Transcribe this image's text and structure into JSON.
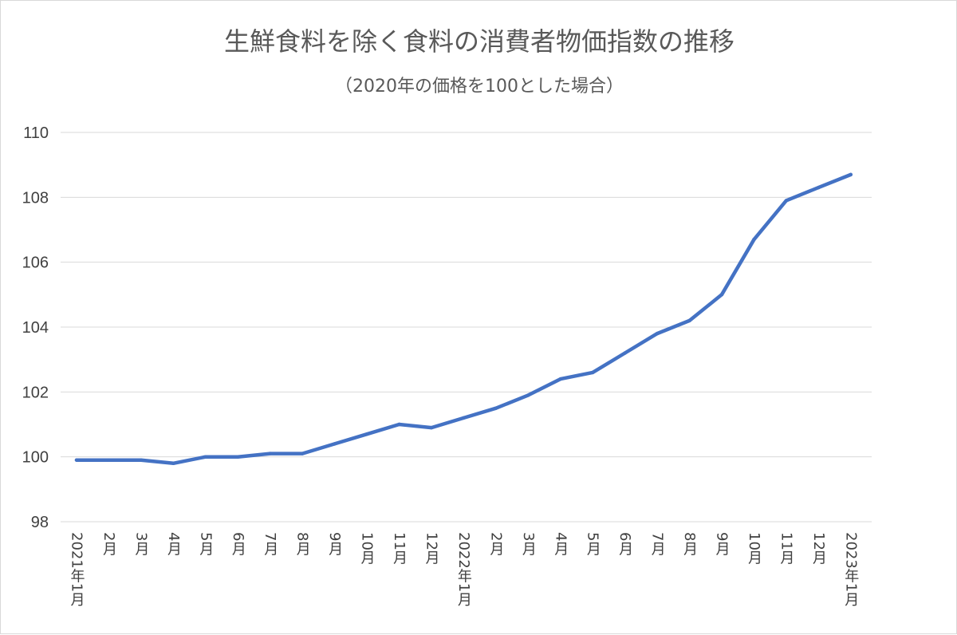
{
  "chart_data": {
    "type": "line",
    "title": "生鮮食料を除く食料の消費者物価指数の推移",
    "subtitle": "（2020年の価格を100とした場合）",
    "categories": [
      "2021年1月",
      "2月",
      "3月",
      "4月",
      "5月",
      "6月",
      "7月",
      "8月",
      "9月",
      "10月",
      "11月",
      "12月",
      "2022年1月",
      "2月",
      "3月",
      "4月",
      "5月",
      "6月",
      "7月",
      "8月",
      "9月",
      "10月",
      "11月",
      "12月",
      "2023年1月"
    ],
    "series": [
      {
        "values": [
          99.9,
          99.9,
          99.9,
          99.8,
          100.0,
          100.0,
          100.1,
          100.1,
          100.4,
          100.7,
          101.0,
          100.9,
          101.2,
          101.5,
          101.9,
          102.4,
          102.6,
          103.2,
          103.8,
          104.2,
          105.0,
          106.7,
          107.9,
          108.3,
          108.7
        ]
      }
    ],
    "ylim": [
      98,
      110
    ],
    "yticks": [
      98,
      100,
      102,
      104,
      106,
      108,
      110
    ],
    "line_color": "#4472c4",
    "grid": true,
    "xlabel": "",
    "ylabel": ""
  }
}
